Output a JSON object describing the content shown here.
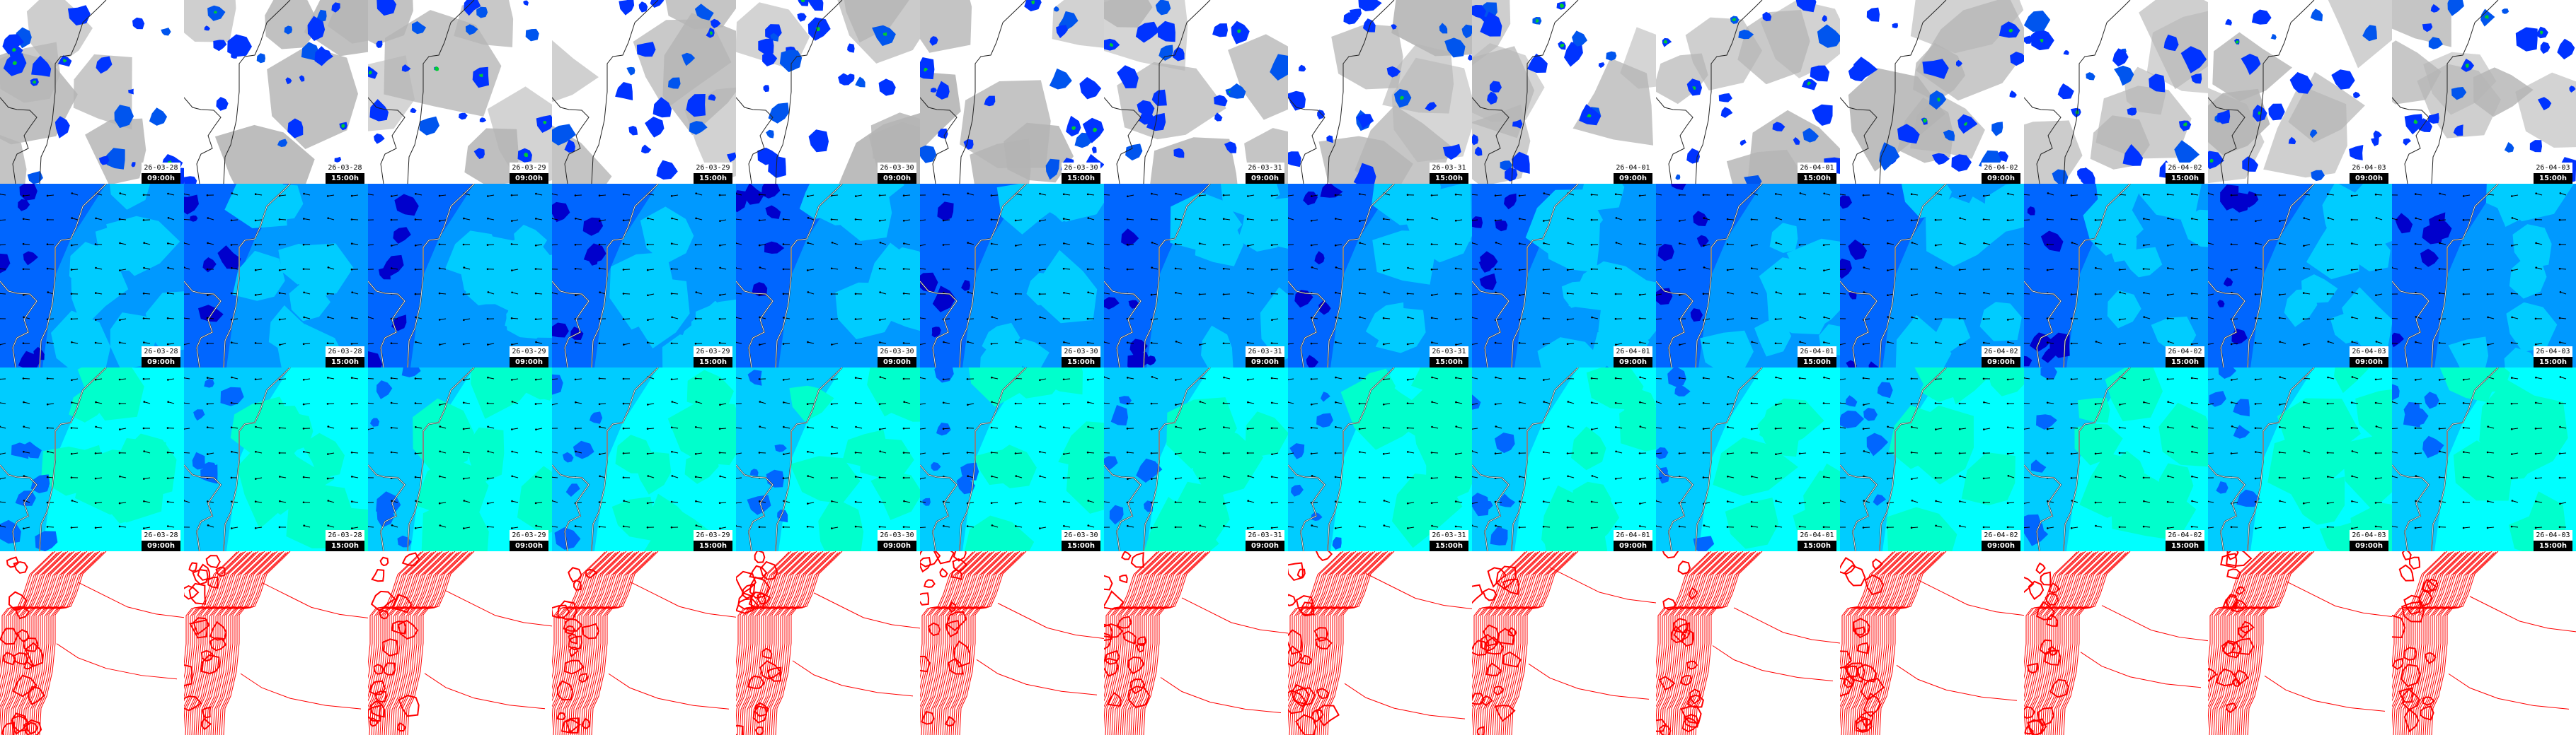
{
  "frames": [
    {
      "date": "26-03-28",
      "time": "09:00h"
    },
    {
      "date": "26-03-28",
      "time": "15:00h"
    },
    {
      "date": "26-03-29",
      "time": "09:00h"
    },
    {
      "date": "26-03-29",
      "time": "15:00h"
    },
    {
      "date": "26-03-30",
      "time": "09:00h"
    },
    {
      "date": "26-03-30",
      "time": "15:00h"
    },
    {
      "date": "26-03-31",
      "time": "09:00h"
    },
    {
      "date": "26-03-31",
      "time": "15:00h"
    },
    {
      "date": "26-04-01",
      "time": "09:00h"
    },
    {
      "date": "26-04-01",
      "time": "15:00h"
    },
    {
      "date": "26-04-02",
      "time": "09:00h"
    },
    {
      "date": "26-04-02",
      "time": "15:00h"
    },
    {
      "date": "26-04-03",
      "time": "09:00h"
    },
    {
      "date": "26-04-03",
      "time": "15:00h"
    }
  ],
  "rows": [
    {
      "kind": "cloud-precipitation",
      "labeled": true,
      "colors": {
        "cloud": "#b4b4b4",
        "clear": "#ffffff",
        "precip": "#0033ff",
        "precip_mid": "#0055ee",
        "precip_heavy": "#00cc33"
      }
    },
    {
      "kind": "wind-field-1",
      "labeled": true,
      "colors": {
        "base": "#0099ff",
        "light": "#00ccff",
        "mid": "#0066ff",
        "strong": "#0000cc"
      }
    },
    {
      "kind": "wind-field-2",
      "labeled": true,
      "colors": {
        "base": "#00ffff",
        "light": "#00ffcc",
        "mid": "#00ccff",
        "strong": "#0066ff"
      }
    },
    {
      "kind": "pressure-contours",
      "labeled": false,
      "colors": {
        "bg": "#ffffff",
        "line": "#ff0000"
      }
    }
  ]
}
